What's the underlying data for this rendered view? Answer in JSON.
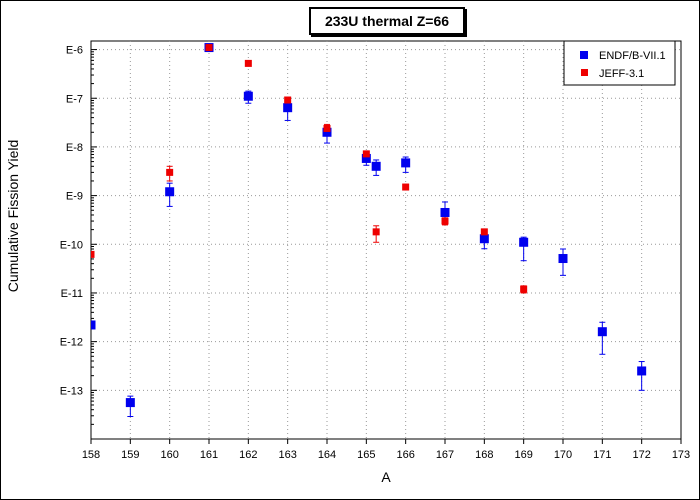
{
  "chart_data": {
    "type": "scatter",
    "title": "233U thermal Z=66",
    "xlabel": "A",
    "ylabel": "Cumulative Fission Yield",
    "xlim": [
      158,
      173
    ],
    "ylim": [
      1e-14,
      1.5e-06
    ],
    "yscale": "log",
    "x_ticks": [
      158,
      159,
      160,
      161,
      162,
      163,
      164,
      165,
      166,
      167,
      168,
      169,
      170,
      171,
      172,
      173
    ],
    "y_ticks": [
      {
        "value": 1e-06,
        "label": "E-6"
      },
      {
        "value": 1e-07,
        "label": "E-7"
      },
      {
        "value": 1e-08,
        "label": "E-8"
      },
      {
        "value": 1e-09,
        "label": "E-9"
      },
      {
        "value": 1e-10,
        "label": "E-10"
      },
      {
        "value": 1e-11,
        "label": "E-11"
      },
      {
        "value": 1e-12,
        "label": "E-12"
      },
      {
        "value": 1e-13,
        "label": "E-13"
      }
    ],
    "grid": true,
    "legend_position": "top-right",
    "series": [
      {
        "name": "ENDF/B-VII.1",
        "color": "#0000ee",
        "marker": "square",
        "error_bars": true,
        "points": [
          {
            "x": 158,
            "y": 2.2e-12,
            "ylow": 2.2e-12,
            "yhigh": 2.2e-12
          },
          {
            "x": 159,
            "y": 5.6e-14,
            "ylow": 2.9e-14,
            "yhigh": 7.6e-14
          },
          {
            "x": 160,
            "y": 1.2e-09,
            "ylow": 6e-10,
            "yhigh": 1.8e-09
          },
          {
            "x": 161,
            "y": 1.1e-06,
            "ylow": 1e-06,
            "yhigh": 1.2e-06
          },
          {
            "x": 162,
            "y": 1.1e-07,
            "ylow": 7.9e-08,
            "yhigh": 1.4e-07
          },
          {
            "x": 163,
            "y": 6.4e-08,
            "ylow": 3.5e-08,
            "yhigh": 8.8e-08
          },
          {
            "x": 164,
            "y": 2e-08,
            "ylow": 1.2e-08,
            "yhigh": 2.7e-08
          },
          {
            "x": 165,
            "y": 5.8e-09,
            "ylow": 4.2e-09,
            "yhigh": 7.4e-09
          },
          {
            "x": 165.25,
            "y": 4e-09,
            "ylow": 2.6e-09,
            "yhigh": 5.4e-09
          },
          {
            "x": 166,
            "y": 4.7e-09,
            "ylow": 3e-09,
            "yhigh": 6.2e-09
          },
          {
            "x": 167,
            "y": 4.5e-10,
            "ylow": 2.8e-10,
            "yhigh": 7.4e-10
          },
          {
            "x": 168,
            "y": 1.3e-10,
            "ylow": 8.1e-11,
            "yhigh": 1.8e-10
          },
          {
            "x": 169,
            "y": 1.1e-10,
            "ylow": 4.6e-11,
            "yhigh": 1.4e-10
          },
          {
            "x": 170,
            "y": 5.1e-11,
            "ylow": 2.3e-11,
            "yhigh": 8e-11
          },
          {
            "x": 171,
            "y": 1.6e-12,
            "ylow": 5.5e-13,
            "yhigh": 2.5e-12
          },
          {
            "x": 172,
            "y": 2.5e-13,
            "ylow": 1e-13,
            "yhigh": 3.9e-13
          }
        ]
      },
      {
        "name": "JEFF-3.1",
        "color": "#ee0000",
        "marker": "square",
        "error_bars": true,
        "points": [
          {
            "x": 158,
            "y": 6.2e-11,
            "ylow": 6.2e-11,
            "yhigh": 6.2e-11
          },
          {
            "x": 160,
            "y": 3e-09,
            "ylow": 2e-09,
            "yhigh": 4e-09
          },
          {
            "x": 161,
            "y": 1.1e-06,
            "ylow": 1.1e-06,
            "yhigh": 1.1e-06
          },
          {
            "x": 162,
            "y": 5.2e-07,
            "ylow": 5.2e-07,
            "yhigh": 5.2e-07
          },
          {
            "x": 163,
            "y": 9.2e-08,
            "ylow": 9.2e-08,
            "yhigh": 9.2e-08
          },
          {
            "x": 164,
            "y": 2.4e-08,
            "ylow": 2.1e-08,
            "yhigh": 2.9e-08
          },
          {
            "x": 165,
            "y": 7.2e-09,
            "ylow": 6.4e-09,
            "yhigh": 7.8e-09
          },
          {
            "x": 165.25,
            "y": 1.8e-10,
            "ylow": 1.1e-10,
            "yhigh": 2.4e-10
          },
          {
            "x": 166,
            "y": 1.5e-09,
            "ylow": 1.5e-09,
            "yhigh": 1.5e-09
          },
          {
            "x": 167,
            "y": 3e-10,
            "ylow": 2.5e-10,
            "yhigh": 3.5e-10
          },
          {
            "x": 168,
            "y": 1.8e-10,
            "ylow": 1.8e-10,
            "yhigh": 1.8e-10
          },
          {
            "x": 169,
            "y": 1.2e-11,
            "ylow": 1e-11,
            "yhigh": 1.4e-11
          }
        ]
      }
    ]
  }
}
